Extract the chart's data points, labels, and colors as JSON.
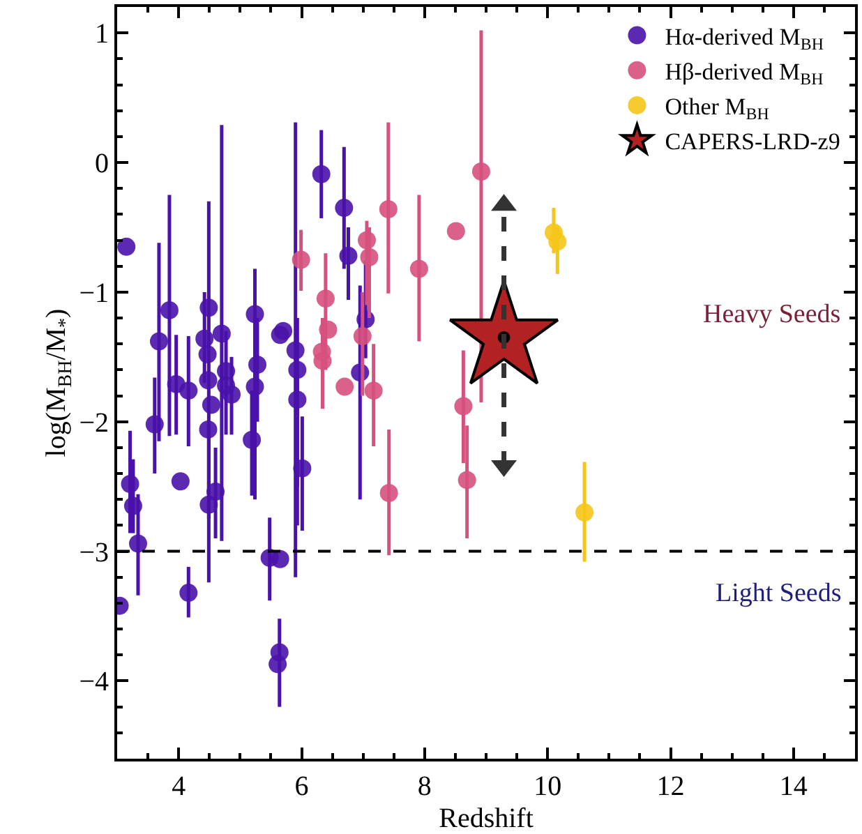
{
  "chart_data": {
    "type": "scatter",
    "xlabel": "Redshift",
    "ylabel": "log(M$_{BH}$/M$_{*}$)",
    "xlim": [
      3,
      15
    ],
    "ylim": [
      -4.6,
      1.2
    ],
    "xticks": [
      4,
      6,
      8,
      10,
      12,
      14
    ],
    "yticks": [
      -4,
      -3,
      -2,
      -1,
      0,
      1
    ],
    "legend": "top right",
    "marker": "circle",
    "series": [
      {
        "name": "Hα-derived M$_{BH}$",
        "color": "#4a12aa",
        "x": [
          3.15,
          3.04,
          3.21,
          3.26,
          3.34,
          3.61,
          3.68,
          3.85,
          3.96,
          4.03,
          4.16,
          4.16,
          4.42,
          4.49,
          4.47,
          4.48,
          4.53,
          4.48,
          4.49,
          4.6,
          4.7,
          4.77,
          4.77,
          4.86,
          5.24,
          5.28,
          5.24,
          5.19,
          5.48,
          5.65,
          5.64,
          5.61,
          5.65,
          5.7,
          5.9,
          5.93,
          5.93,
          6.01,
          6.32,
          6.69,
          6.76,
          7.04,
          6.95
        ],
        "values": [
          -0.65,
          -3.42,
          -2.48,
          -2.65,
          -2.94,
          -2.02,
          -1.38,
          -1.14,
          -1.71,
          -2.46,
          -1.76,
          -3.32,
          -1.36,
          -1.12,
          -1.48,
          -1.68,
          -1.87,
          -2.06,
          -2.64,
          -2.54,
          -1.32,
          -1.61,
          -1.72,
          -1.79,
          -1.17,
          -1.56,
          -1.73,
          -2.14,
          -3.05,
          -3.06,
          -3.78,
          -3.87,
          -1.33,
          -1.3,
          -1.45,
          -1.6,
          -1.83,
          -2.36,
          -0.09,
          -0.35,
          -0.72,
          -1.21,
          -1.62
        ],
        "errors": [
          null,
          null,
          [
            -2.86,
            -2.07
          ],
          [
            -2.86,
            -2.29
          ],
          [
            -3.34,
            -2.56
          ],
          [
            -2.4,
            -1.66
          ],
          [
            -2.15,
            -0.62
          ],
          [
            -2.11,
            -0.25
          ],
          [
            -2.1,
            -1.33
          ],
          null,
          [
            -2.19,
            -1.34
          ],
          [
            -3.51,
            -3.12
          ],
          [
            -1.7,
            -1.0
          ],
          [
            -2.75,
            -0.3
          ],
          null,
          null,
          null,
          null,
          [
            -3.24,
            -2.02
          ],
          [
            -2.9,
            -2.2
          ],
          [
            -2.92,
            0.29
          ],
          [
            -2.1,
            -1.3
          ],
          null,
          [
            -2.1,
            -1.5
          ],
          [
            -1.6,
            -0.82
          ],
          [
            -2.0,
            -1.2
          ],
          [
            -2.6,
            -1.4
          ],
          [
            -2.57,
            -1.76
          ],
          [
            -3.38,
            -2.74
          ],
          null,
          [
            -4.2,
            -3.52
          ],
          null,
          null,
          null,
          [
            -3.2,
            0.31
          ],
          [
            -2.5,
            -1.2
          ],
          [
            -2.8,
            -1.6
          ],
          [
            -2.84,
            -1.96
          ],
          [
            -0.43,
            0.25
          ],
          [
            -0.82,
            0.12
          ],
          [
            -1.06,
            -0.5
          ],
          [
            -1.51,
            -0.76
          ],
          [
            -2.6,
            -0.95
          ]
        ]
      },
      {
        "name": "Hβ-derived M$_{BH}$",
        "color": "#d6517d",
        "x": [
          5.99,
          6.39,
          6.43,
          6.33,
          6.34,
          6.7,
          7.06,
          7.1,
          6.99,
          7.17,
          7.41,
          7.42,
          7.91,
          8.51,
          8.92,
          8.63,
          8.69
        ],
        "values": [
          -0.75,
          -1.05,
          -1.29,
          -1.46,
          -1.53,
          -1.73,
          -0.6,
          -0.73,
          -1.34,
          -1.76,
          -0.36,
          -2.55,
          -0.82,
          -0.53,
          -0.07,
          -1.88,
          -2.45
        ],
        "errors": [
          [
            -0.99,
            -0.52
          ],
          [
            -1.6,
            -0.7
          ],
          null,
          null,
          [
            -1.9,
            -1.2
          ],
          null,
          [
            -1.1,
            -0.45
          ],
          [
            -1.2,
            -0.5
          ],
          [
            -1.8,
            -1.0
          ],
          [
            -2.19,
            -1.4
          ],
          [
            -1.01,
            0.31
          ],
          [
            -3.03,
            -2.06
          ],
          [
            -1.38,
            -0.25
          ],
          null,
          [
            -1.85,
            1.02
          ],
          [
            -2.32,
            -1.45
          ],
          [
            -2.9,
            -2.03
          ]
        ]
      },
      {
        "name": "Other M$_{BH}$",
        "color": "#f5c518",
        "x": [
          10.1,
          10.16,
          10.6
        ],
        "values": [
          -0.54,
          -0.61,
          -2.7
        ],
        "errors": [
          [
            -0.7,
            -0.35
          ],
          [
            -0.86,
            -0.5
          ],
          [
            -3.08,
            -2.31
          ]
        ]
      },
      {
        "name": "CAPERS-LRD-z9",
        "color": "#b22222",
        "marker": "star",
        "x": [
          9.29
        ],
        "values": [
          -1.35
        ],
        "errors": [
          [
            -1.51,
            -1.18
          ]
        ]
      },
      {
        "color": "#000000",
        "x": [
          9.29
        ],
        "values": [
          -1.35
        ]
      },
      {
        "type": "line",
        "color": "#333333",
        "line_style": "dashed",
        "marker": "triangle",
        "x": [
          9.29,
          9.29
        ],
        "values": [
          -2.34,
          -0.33
        ]
      }
    ],
    "ref_lines": [
      {
        "axis": "y",
        "value": -3,
        "color": "#000000",
        "line_style": "dashed"
      }
    ],
    "annotations": [
      "Heavy Seeds",
      "Light Seeds"
    ]
  }
}
